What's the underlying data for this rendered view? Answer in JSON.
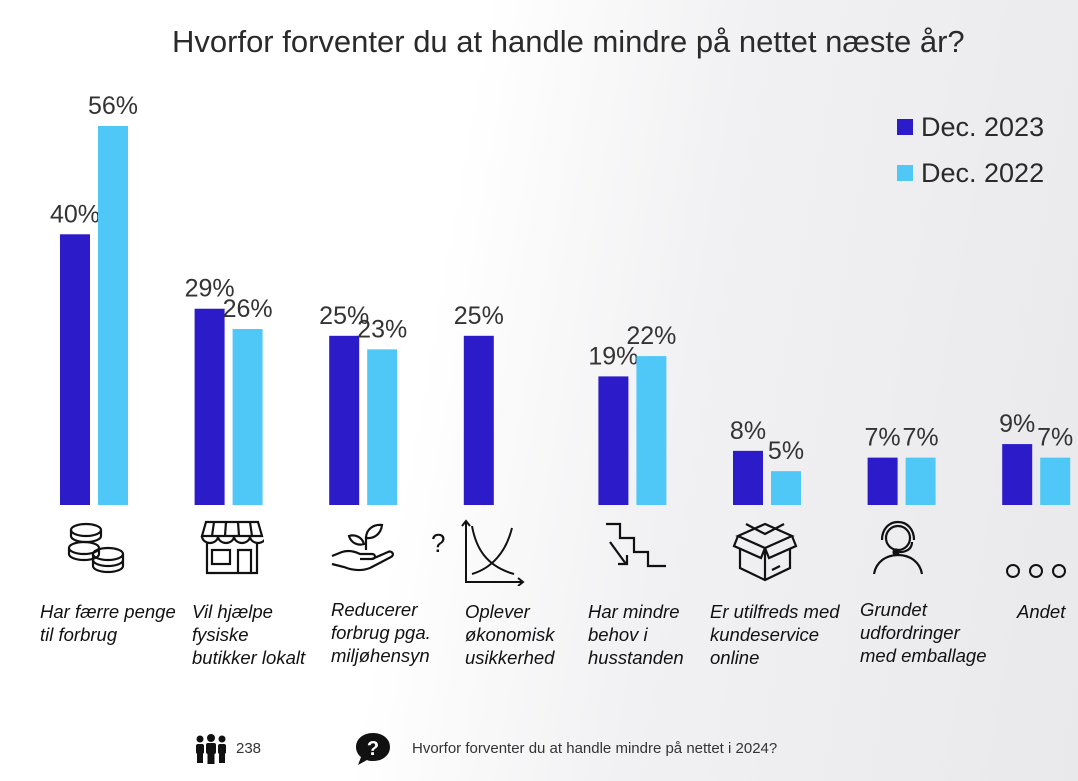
{
  "chart_data": {
    "type": "bar",
    "title": "Hvorfor forventer du at handle mindre på nettet næste år?",
    "categories": [
      "Har færre penge til forbrug",
      "Vil hjælpe fysiske butikker lokalt",
      "Reducerer forbrug pga. miljøhensyn",
      "Oplever økonomisk usikkerhed",
      "Har mindre behov i husstanden",
      "Er utilfreds med kundeservice online",
      "Grundet udfordringer med emballage",
      "Andet"
    ],
    "series": [
      {
        "name": "Dec. 2023",
        "color": "#2b1bc8",
        "values": [
          40,
          29,
          25,
          25,
          19,
          8,
          7,
          9
        ],
        "labels": [
          "40%",
          "29%",
          "25%",
          "25%",
          "19%",
          "8%",
          "7%",
          "9%"
        ]
      },
      {
        "name": "Dec. 2022",
        "color": "#4fc8f7",
        "values": [
          56,
          26,
          23,
          null,
          22,
          5,
          7,
          7
        ],
        "labels": [
          "56%",
          "26%",
          "23%",
          "",
          "22%",
          "5%",
          "7%",
          "7%"
        ]
      }
    ],
    "ylim": [
      0,
      56
    ],
    "legend": "top-right",
    "grid": false
  },
  "labels": {
    "cat0": [
      "Har færre penge",
      "til forbrug"
    ],
    "cat1": [
      "Vil hjælpe",
      "fysiske",
      "butikker lokalt"
    ],
    "cat2": [
      "Reducerer",
      "forbrug pga.",
      "miljøhensyn"
    ],
    "cat3": [
      "Oplever",
      "økonomisk",
      "usikkerhed"
    ],
    "cat4": [
      "Har mindre",
      "behov i",
      "husstanden"
    ],
    "cat5": [
      "Er utilfreds med",
      "kundeservice",
      "online"
    ],
    "cat6": [
      "Grundet",
      "udfordringer",
      "med emballage"
    ],
    "cat7": [
      "Andet"
    ]
  },
  "icons": [
    "coins-icon",
    "storefront-icon",
    "plant-hand-icon",
    "economic-chart-question-icon",
    "stairs-down-icon",
    "open-box-icon",
    "support-headset-icon",
    "more-dots-icon"
  ],
  "footer": {
    "respondents": "238",
    "question": "Hvorfor forventer du at handle mindre på nettet i 2024?",
    "people_icon": "people-icon",
    "question_icon": "question-bubble-icon"
  }
}
